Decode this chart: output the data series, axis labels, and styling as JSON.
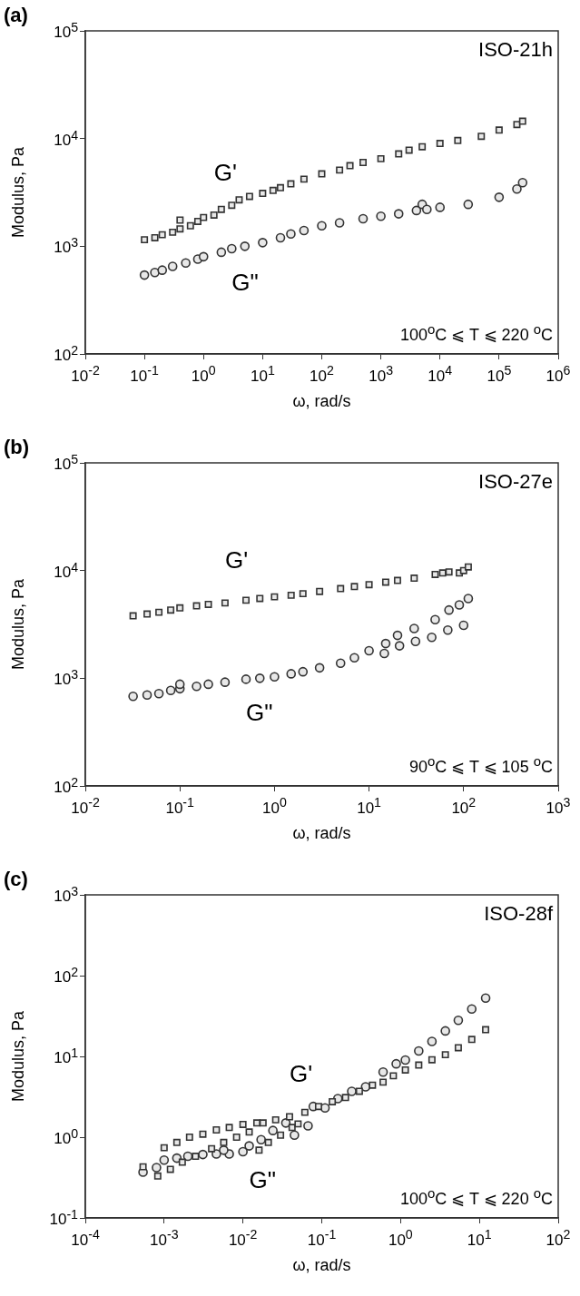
{
  "chart_data": [
    {
      "type": "scatter",
      "title": "(a)",
      "xlabel": "ω, rad/s",
      "ylabel": "Modulus, Pa",
      "annotations": [
        "ISO-21h",
        "100$^{o}$C ⩽ T ⩽ 220 $^{o}$C"
      ],
      "log": "xy",
      "xlim": [
        0.01,
        1000000
      ],
      "ylim": [
        100,
        100000
      ],
      "xticks": [
        {
          "value": 0.01,
          "label": "10$^{-2}$"
        },
        {
          "value": 0.1,
          "label": "10$^{-1}$"
        },
        {
          "value": 1,
          "label": "10$^{0}$"
        },
        {
          "value": 10,
          "label": "10$^{1}$"
        },
        {
          "value": 100,
          "label": "10$^{2}$"
        },
        {
          "value": 1000,
          "label": "10$^{3}$"
        },
        {
          "value": 10000,
          "label": "10$^{4}$"
        },
        {
          "value": 100000,
          "label": "10$^{5}$"
        },
        {
          "value": 1000000,
          "label": "10$^{6}$"
        }
      ],
      "yticks": [
        {
          "value": 100,
          "label": "10$^{2}$"
        },
        {
          "value": 1000,
          "label": "10$^{3}$"
        },
        {
          "value": 10000,
          "label": "10$^{4}$"
        },
        {
          "value": 100000,
          "label": "10$^{5}$"
        }
      ],
      "series": [
        {
          "name": "G'",
          "color": "#333333",
          "marker": "square",
          "x": [
            0.1,
            0.15,
            0.2,
            0.3,
            0.4,
            0.4,
            0.6,
            0.8,
            1,
            1.5,
            2,
            3,
            4,
            6,
            10,
            15,
            20,
            30,
            50,
            100,
            200,
            300,
            500,
            1000,
            2000,
            3000,
            5000,
            10000,
            20000,
            50000,
            100000,
            200000,
            250000
          ],
          "values": [
            1150,
            1200,
            1280,
            1350,
            1450,
            1750,
            1550,
            1700,
            1850,
            1950,
            2200,
            2400,
            2700,
            2900,
            3100,
            3300,
            3500,
            3800,
            4200,
            4700,
            5100,
            5600,
            6000,
            6500,
            7200,
            7800,
            8400,
            9000,
            9600,
            10500,
            12000,
            13500,
            14500
          ]
        },
        {
          "name": "G\"",
          "color": "#333333",
          "marker": "circle",
          "x": [
            0.1,
            0.15,
            0.2,
            0.3,
            0.5,
            0.8,
            1,
            2,
            3,
            5,
            10,
            20,
            30,
            50,
            100,
            200,
            500,
            1000,
            2000,
            4000,
            5000,
            6000,
            10000,
            30000,
            100000,
            200000,
            250000
          ],
          "values": [
            540,
            570,
            600,
            650,
            700,
            760,
            800,
            880,
            950,
            1000,
            1080,
            1200,
            1300,
            1400,
            1550,
            1650,
            1800,
            1900,
            2000,
            2150,
            2450,
            2200,
            2300,
            2450,
            2850,
            3400,
            3900
          ]
        }
      ]
    },
    {
      "type": "scatter",
      "title": "(b)",
      "xlabel": "ω, rad/s",
      "ylabel": "Modulus, Pa",
      "annotations": [
        "ISO-27e",
        "90$^{o}$C ⩽ T ⩽ 105 $^{o}$C"
      ],
      "log": "xy",
      "xlim": [
        0.01,
        1000
      ],
      "ylim": [
        100,
        100000
      ],
      "xticks": [
        {
          "value": 0.01,
          "label": "10$^{-2}$"
        },
        {
          "value": 0.1,
          "label": "10$^{-1}$"
        },
        {
          "value": 1,
          "label": "10$^{0}$"
        },
        {
          "value": 10,
          "label": "10$^{1}$"
        },
        {
          "value": 100,
          "label": "10$^{2}$"
        },
        {
          "value": 1000,
          "label": "10$^{3}$"
        }
      ],
      "yticks": [
        {
          "value": 100,
          "label": "10$^{2}$"
        },
        {
          "value": 1000,
          "label": "10$^{3}$"
        },
        {
          "value": 10000,
          "label": "10$^{4}$"
        },
        {
          "value": 100000,
          "label": "10$^{5}$"
        }
      ],
      "series": [
        {
          "name": "G'",
          "color": "#333333",
          "marker": "square",
          "x": [
            0.032,
            0.045,
            0.06,
            0.08,
            0.1,
            0.15,
            0.2,
            0.3,
            0.5,
            0.7,
            1,
            1.5,
            2,
            3,
            5,
            7,
            10,
            15,
            20,
            30,
            50,
            60,
            70,
            90,
            100,
            112
          ],
          "values": [
            3800,
            3950,
            4100,
            4300,
            4500,
            4700,
            4850,
            5000,
            5300,
            5500,
            5700,
            5900,
            6100,
            6400,
            6800,
            7100,
            7400,
            7800,
            8100,
            8500,
            9200,
            9500,
            9700,
            9500,
            10000,
            10800
          ]
        },
        {
          "name": "G\"",
          "color": "#333333",
          "marker": "circle",
          "x": [
            0.032,
            0.045,
            0.06,
            0.08,
            0.1,
            0.1,
            0.15,
            0.2,
            0.3,
            0.5,
            0.7,
            1,
            1.5,
            2,
            3,
            5,
            7,
            10,
            15,
            20,
            30,
            50,
            70,
            90,
            112,
            14.5,
            21,
            31,
            46,
            68,
            100
          ],
          "values": [
            680,
            700,
            720,
            770,
            800,
            880,
            840,
            880,
            920,
            980,
            1000,
            1030,
            1100,
            1150,
            1250,
            1380,
            1550,
            1800,
            2100,
            2500,
            2900,
            3500,
            4300,
            4800,
            5500,
            1700,
            2000,
            2200,
            2400,
            2800,
            3100
          ]
        }
      ]
    },
    {
      "type": "scatter",
      "title": "(c)",
      "xlabel": "ω, rad/s",
      "ylabel": "Modulus, Pa",
      "annotations": [
        "ISO-28f",
        "100$^{o}$C ⩽ T ⩽ 220 $^{o}$C"
      ],
      "log": "xy",
      "xlim": [
        0.0001,
        100
      ],
      "ylim": [
        0.1,
        1000
      ],
      "xticks": [
        {
          "value": 0.0001,
          "label": "10$^{-4}$"
        },
        {
          "value": 0.001,
          "label": "10$^{-3}$"
        },
        {
          "value": 0.01,
          "label": "10$^{-2}$"
        },
        {
          "value": 0.1,
          "label": "10$^{-1}$"
        },
        {
          "value": 1,
          "label": "10$^{0}$"
        },
        {
          "value": 10,
          "label": "10$^{1}$"
        },
        {
          "value": 100,
          "label": "10$^{2}$"
        }
      ],
      "yticks": [
        {
          "value": 0.1,
          "label": "10$^{-1}$"
        },
        {
          "value": 1,
          "label": "10$^{0}$"
        },
        {
          "value": 10,
          "label": "10$^{1}$"
        },
        {
          "value": 100,
          "label": "10$^{2}$"
        },
        {
          "value": 1000,
          "label": "10$^{3}$"
        }
      ],
      "series": [
        {
          "name": "G'",
          "color": "#333333",
          "marker": "square",
          "x": [
            0.00054,
            0.00083,
            0.001,
            0.00145,
            0.0021,
            0.0031,
            0.0046,
            0.0067,
            0.01,
            0.015,
            0.018,
            0.026,
            0.039,
            0.061,
            0.091,
            0.136,
            0.2,
            0.3,
            0.44,
            0.6,
            0.81,
            1.15,
            1.7,
            2.5,
            3.7,
            5.4,
            8,
            12,
            0.0012,
            0.0017,
            0.0025,
            0.004,
            0.0057,
            0.0083,
            0.012,
            0.016,
            0.021,
            0.03,
            0.042,
            0.05
          ],
          "values": [
            0.43,
            0.33,
            0.74,
            0.86,
            1,
            1.09,
            1.23,
            1.32,
            1.44,
            1.5,
            1.5,
            1.64,
            1.79,
            2.03,
            2.4,
            2.75,
            3.1,
            3.7,
            4.4,
            4.8,
            5.75,
            6.8,
            7.8,
            9.1,
            10.5,
            12.8,
            16.2,
            21.4,
            0.4,
            0.49,
            0.58,
            0.72,
            0.86,
            1,
            1.16,
            0.69,
            0.86,
            1.06,
            1.32,
            1.46
          ]
        },
        {
          "name": "G\"",
          "color": "#333333",
          "marker": "circle",
          "x": [
            0.00054,
            0.0008,
            0.001,
            0.00145,
            0.002,
            0.0031,
            0.0046,
            0.0067,
            0.01,
            0.012,
            0.017,
            0.024,
            0.035,
            0.045,
            0.067,
            0.078,
            0.11,
            0.16,
            0.24,
            0.36,
            0.6,
            0.88,
            1.15,
            1.7,
            2.5,
            3.7,
            5.4,
            8,
            12,
            0.0057
          ],
          "values": [
            0.37,
            0.42,
            0.52,
            0.55,
            0.58,
            0.61,
            0.62,
            0.62,
            0.66,
            0.78,
            0.93,
            1.21,
            1.5,
            1.06,
            1.38,
            2.4,
            2.3,
            3,
            3.7,
            4.2,
            6.4,
            8.1,
            9,
            11.7,
            15.3,
            20.7,
            28,
            38.6,
            52.7,
            0.69
          ]
        }
      ]
    }
  ]
}
